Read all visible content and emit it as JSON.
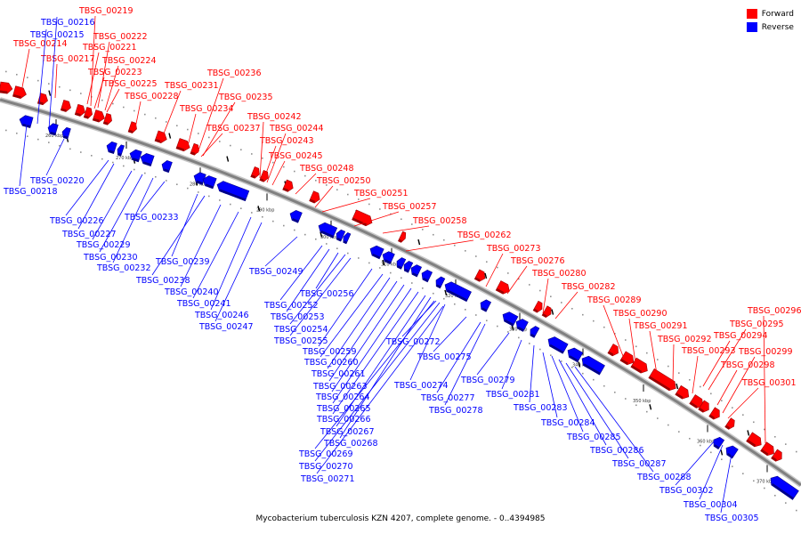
{
  "legend": [
    {
      "label": "Forward",
      "color": "#ff0000"
    },
    {
      "label": "Reverse",
      "color": "#0000ff"
    }
  ],
  "caption": "Mycobacterium tuberculosis KZN 4207, complete genome. - 0..4394985",
  "colors": {
    "forward": "#ff0000",
    "reverse": "#0000ff",
    "backbone": "#808080"
  },
  "ticks": [
    "260 kbp",
    "270 kbp",
    "280 kbp",
    "290 kbp",
    "300 kbp",
    "310 kbp",
    "320 kbp",
    "330 kbp",
    "340 kbp",
    "350 kbp",
    "360 kbp",
    "370 kbp"
  ],
  "forward_genes": [
    "TBSG_00219",
    "TBSG_00222",
    "TBSG_00221",
    "TBSG_00214",
    "TBSG_00224",
    "TBSG_00217",
    "TBSG_00223",
    "TBSG_00236",
    "TBSG_00225",
    "TBSG_00231",
    "TBSG_00228",
    "TBSG_00235",
    "TBSG_00234",
    "TBSG_00242",
    "TBSG_00237",
    "TBSG_00244",
    "TBSG_00243",
    "TBSG_00245",
    "TBSG_00248",
    "TBSG_00250",
    "TBSG_00251",
    "TBSG_00257",
    "TBSG_00258",
    "TBSG_00262",
    "TBSG_00273",
    "TBSG_00276",
    "TBSG_00280",
    "TBSG_00282",
    "TBSG_00289",
    "TBSG_00290",
    "TBSG_00296",
    "TBSG_00295",
    "TBSG_00291",
    "TBSG_00294",
    "TBSG_00292",
    "TBSG_00293",
    "TBSG_00299",
    "TBSG_00298",
    "TBSG_00301"
  ],
  "reverse_genes": [
    "TBSG_00216",
    "TBSG_00215",
    "TBSG_00220",
    "TBSG_00218",
    "TBSG_00226",
    "TBSG_00233",
    "TBSG_00227",
    "TBSG_00229",
    "TBSG_00230",
    "TBSG_00232",
    "TBSG_00239",
    "TBSG_00238",
    "TBSG_00249",
    "TBSG_00240",
    "TBSG_00241",
    "TBSG_00256",
    "TBSG_00246",
    "TBSG_00252",
    "TBSG_00247",
    "TBSG_00253",
    "TBSG_00254",
    "TBSG_00255",
    "TBSG_00272",
    "TBSG_00259",
    "TBSG_00275",
    "TBSG_00260",
    "TBSG_00261",
    "TBSG_00279",
    "TBSG_00274",
    "TBSG_00263",
    "TBSG_00281",
    "TBSG_00277",
    "TBSG_00264",
    "TBSG_00278",
    "TBSG_00283",
    "TBSG_00265",
    "TBSG_00266",
    "TBSG_00284",
    "TBSG_00267",
    "TBSG_00285",
    "TBSG_00268",
    "TBSG_00286",
    "TBSG_00269",
    "TBSG_00287",
    "TBSG_00270",
    "TBSG_00288",
    "TBSG_00271",
    "TBSG_00302",
    "TBSG_00304",
    "TBSG_00305"
  ]
}
